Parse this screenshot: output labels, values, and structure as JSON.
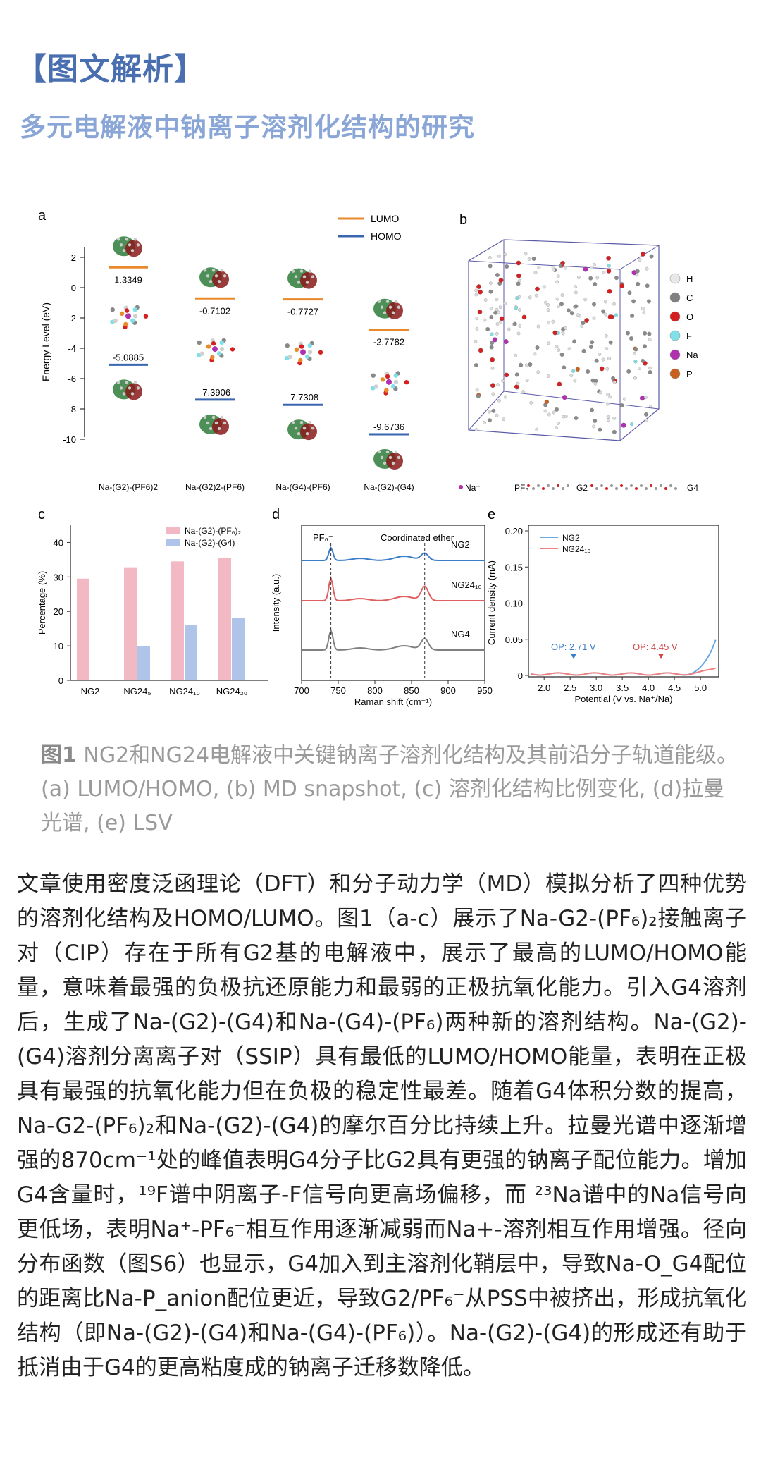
{
  "header": {
    "section_title": "【图文解析】",
    "subtitle": "多元电解液中钠离子溶剂化结构的研究"
  },
  "figure": {
    "panel_labels": [
      "a",
      "b",
      "c",
      "d",
      "e"
    ],
    "panel_a": {
      "legend": [
        "LUMO",
        "HOMO"
      ],
      "ylabel": "Energy Level (eV)",
      "yticks": [
        "2",
        "0",
        "-2",
        "-4",
        "-6",
        "-8",
        "-10"
      ],
      "structures": [
        {
          "name": "Na-(G2)-(PF6)2",
          "lumo": "1.3349",
          "homo": "-5.0885"
        },
        {
          "name": "Na-(G2)2-(PF6)",
          "lumo": "-0.7102",
          "homo": "-7.3906"
        },
        {
          "name": "Na-(G4)-(PF6)",
          "lumo": "-0.7727",
          "homo": "-7.7308"
        },
        {
          "name": "Na-(G2)-(G4)",
          "lumo": "-2.7782",
          "homo": "-9.6736"
        }
      ],
      "colors": {
        "lumo": "#e8892c",
        "homo": "#3a66b0"
      }
    },
    "panel_b": {
      "legend": [
        "H",
        "C",
        "O",
        "F",
        "Na",
        "P"
      ],
      "legend_colors": [
        "#e8e8e8",
        "#808080",
        "#d42020",
        "#7fe0e8",
        "#b030b0",
        "#c86020"
      ],
      "species": [
        "Na⁺",
        "PF₆",
        "G2",
        "G4"
      ]
    },
    "chart_data": [
      {
        "panel": "c",
        "type": "bar",
        "categories": [
          "NG2",
          "NG24₅",
          "NG24₁₀",
          "NG24₂₀"
        ],
        "series": [
          {
            "name": "Na-(G2)-(PF₆)₂",
            "values": [
              29.5,
              32.8,
              34.5,
              35.5
            ],
            "color": "#f2b8c4"
          },
          {
            "name": "Na-(G2)-(G4)",
            "values": [
              0,
              10,
              16,
              18
            ],
            "color": "#b0c4ea"
          }
        ],
        "ylabel": "Percentage (%)",
        "ylim": [
          0,
          45
        ],
        "yticks": [
          "0",
          "10",
          "20",
          "30",
          "40"
        ]
      },
      {
        "panel": "d",
        "type": "line",
        "xlabel": "Raman shift (cm⁻¹)",
        "ylabel": "Intensity (a.u.)",
        "xlim": [
          700,
          950
        ],
        "xticks": [
          "700",
          "750",
          "800",
          "850",
          "900",
          "950"
        ],
        "annotations": [
          "PF₆⁻",
          "Coordinated ether"
        ],
        "series": [
          {
            "name": "NG2",
            "color": "#3a7dc8"
          },
          {
            "name": "NG24₁₀",
            "color": "#e06060"
          },
          {
            "name": "NG4",
            "color": "#808080"
          }
        ],
        "marker_lines": [
          740,
          868
        ]
      },
      {
        "panel": "e",
        "type": "line",
        "xlabel": "Potential (V vs. Na⁺/Na)",
        "ylabel": "Current density (mA)",
        "xlim": [
          1.7,
          5.35
        ],
        "ylim": [
          0,
          0.2
        ],
        "xticks": [
          "2.0",
          "2.5",
          "3.0",
          "3.5",
          "4.0",
          "4.5",
          "5.0"
        ],
        "yticks": [
          "0",
          "0.05",
          "0.10",
          "0.15",
          "0.20"
        ],
        "series": [
          {
            "name": "NG2",
            "color": "#6aa8e0",
            "onset": "OP: 2.71 V"
          },
          {
            "name": "NG24₁₀",
            "color": "#f08080",
            "onset": "OP: 4.45 V"
          }
        ]
      }
    ]
  },
  "caption": {
    "label": "图1",
    "text": " NG2和NG24电解液中关键钠离子溶剂化结构及其前沿分子轨道能级。(a) LUMO/HOMO, (b) MD snapshot, (c) 溶剂化结构比例变化, (d)拉曼光谱, (e) LSV"
  },
  "body": {
    "paragraph": "文章使用密度泛函理论（DFT）和分子动力学（MD）模拟分析了四种优势的溶剂化结构及HOMO/LUMO。图1（a-c）展示了Na-G2-(PF₆)₂接触离子对（CIP）存在于所有G2基的电解液中，展示了最高的LUMO/HOMO能量，意味着最强的负极抗还原能力和最弱的正极抗氧化能力。引入G4溶剂后，生成了Na-(G2)-(G4)和Na-(G4)-(PF₆)两种新的溶剂结构。Na-(G2)-(G4)溶剂分离离子对（SSIP）具有最低的LUMO/HOMO能量，表明在正极具有最强的抗氧化能力但在负极的稳定性最差。随着G4体积分数的提高，Na-G2-(PF₆)₂和Na-(G2)-(G4)的摩尔百分比持续上升。拉曼光谱中逐渐增强的870cm⁻¹处的峰值表明G4分子比G2具有更强的钠离子配位能力。增加G4含量时，¹⁹F谱中阴离子-F信号向更高场偏移，而 ²³Na谱中的Na信号向更低场，表明Na⁺-PF₆⁻相互作用逐渐减弱而Na+-溶剂相互作用增强。径向分布函数（图S6）也显示，G4加入到主溶剂化鞘层中，导致Na-O_G4配位的距离比Na-P_anion配位更近，导致G2/PF₆⁻从PSS中被挤出，形成抗氧化结构（即Na-(G2)-(G4)和Na-(G4)-(PF₆)）。Na-(G2)-(G4)的形成还有助于抵消由于G4的更高粘度成的钠离子迁移数降低。"
  }
}
